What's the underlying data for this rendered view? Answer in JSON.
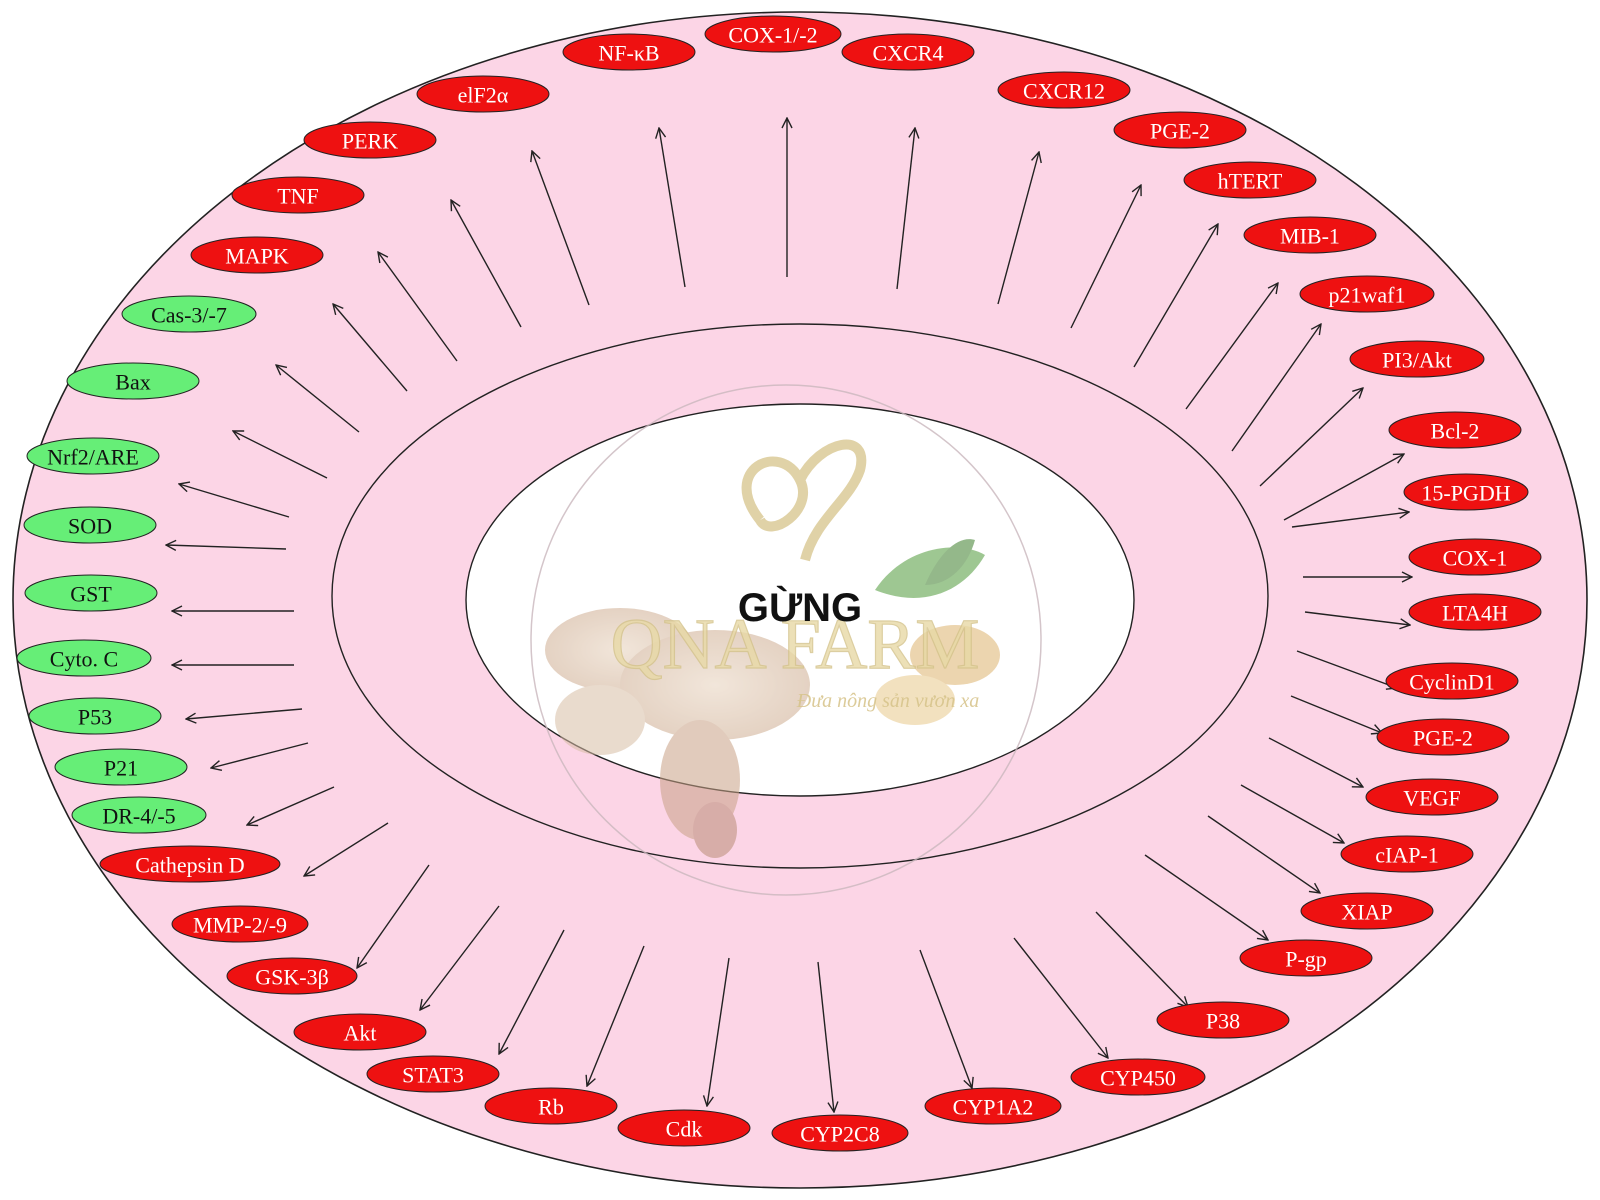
{
  "center_label": "GỪNG",
  "watermark": {
    "brand": "QNA FARM",
    "tagline": "Đưa nông sản vươn xa"
  },
  "colors": {
    "background_ring": "#fcd5e6",
    "red_node": "#ee1111",
    "green_node": "#66ee77",
    "node_outline": "#222222",
    "arrow": "#222222"
  },
  "nodes": [
    {
      "label": "COX-1/-2",
      "kind": "up"
    },
    {
      "label": "CXCR4",
      "kind": "up"
    },
    {
      "label": "CXCR12",
      "kind": "up"
    },
    {
      "label": "PGE-2",
      "kind": "up"
    },
    {
      "label": "hTERT",
      "kind": "up"
    },
    {
      "label": "MIB-1",
      "kind": "up"
    },
    {
      "label": "p21waf1",
      "kind": "up"
    },
    {
      "label": "PI3/Akt",
      "kind": "up"
    },
    {
      "label": "Bcl-2",
      "kind": "up"
    },
    {
      "label": "15-PGDH",
      "kind": "up"
    },
    {
      "label": "COX-1",
      "kind": "up"
    },
    {
      "label": "LTA4H",
      "kind": "up"
    },
    {
      "label": "CyclinD1",
      "kind": "up"
    },
    {
      "label": "PGE-2",
      "kind": "up"
    },
    {
      "label": "VEGF",
      "kind": "up"
    },
    {
      "label": "cIAP-1",
      "kind": "up"
    },
    {
      "label": "XIAP",
      "kind": "up"
    },
    {
      "label": "P-gp",
      "kind": "up"
    },
    {
      "label": "P38",
      "kind": "up"
    },
    {
      "label": "CYP450",
      "kind": "up"
    },
    {
      "label": "CYP1A2",
      "kind": "up"
    },
    {
      "label": "CYP2C8",
      "kind": "up"
    },
    {
      "label": "Cdk",
      "kind": "up"
    },
    {
      "label": "Rb",
      "kind": "up"
    },
    {
      "label": "STAT3",
      "kind": "up"
    },
    {
      "label": "Akt",
      "kind": "up"
    },
    {
      "label": "GSK-3β",
      "kind": "up"
    },
    {
      "label": "MMP-2/-9",
      "kind": "up"
    },
    {
      "label": "Cathepsin D",
      "kind": "up"
    },
    {
      "label": "DR-4/-5",
      "kind": "down"
    },
    {
      "label": "P21",
      "kind": "down"
    },
    {
      "label": "P53",
      "kind": "down"
    },
    {
      "label": "Cyto. C",
      "kind": "down"
    },
    {
      "label": "GST",
      "kind": "down"
    },
    {
      "label": "SOD",
      "kind": "down"
    },
    {
      "label": "Nrf2/ARE",
      "kind": "down"
    },
    {
      "label": "Bax",
      "kind": "down"
    },
    {
      "label": "Cas-3/-7",
      "kind": "down"
    },
    {
      "label": "MAPK",
      "kind": "up"
    },
    {
      "label": "TNF",
      "kind": "up"
    },
    {
      "label": "PERK",
      "kind": "up"
    },
    {
      "label": "elF2α",
      "kind": "up"
    },
    {
      "label": "NF-κB",
      "kind": "up"
    }
  ]
}
